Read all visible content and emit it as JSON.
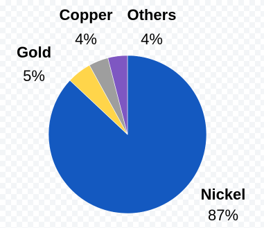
{
  "chart_data": {
    "type": "pie",
    "title": "",
    "slices": [
      {
        "label": "Nickel",
        "value": 87,
        "value_label": "87%",
        "color": "#1459C0"
      },
      {
        "label": "Gold",
        "value": 5,
        "value_label": "5%",
        "color": "#FFD54A"
      },
      {
        "label": "Copper",
        "value": 4,
        "value_label": "4%",
        "color": "#9E9E9E"
      },
      {
        "label": "Others",
        "value": 4,
        "value_label": "4%",
        "color": "#7E57C2"
      }
    ],
    "start_angle_deg": 0,
    "direction": "clockwise",
    "legend": "none",
    "data_labels": "outside"
  }
}
